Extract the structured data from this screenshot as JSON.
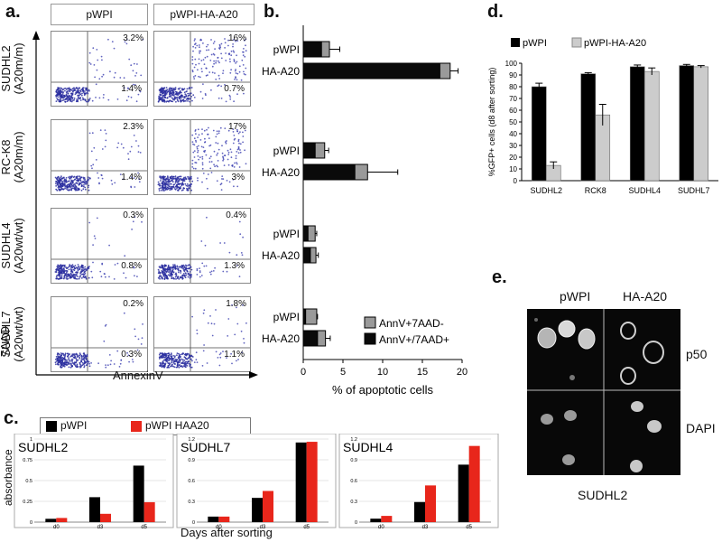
{
  "panel_a": {
    "label": "a.",
    "headers": [
      "pWPI",
      "pWPI-HA-A20"
    ],
    "y_axis_label": "7AAD",
    "x_axis_label": "AnnexinV",
    "rows": [
      {
        "line": "SUDHL2",
        "genotype": "(A20m/m)",
        "q": [
          [
            "3.2%",
            "1.4%"
          ],
          [
            "16%",
            "0.7%"
          ]
        ]
      },
      {
        "line": "RC-K8",
        "genotype": "(A20m/m)",
        "q": [
          [
            "2.3%",
            "1.4%"
          ],
          [
            "17%",
            "3%"
          ]
        ]
      },
      {
        "line": "SUDHL4",
        "genotype": "(A20wt/wt)",
        "q": [
          [
            "0.3%",
            "0.8%"
          ],
          [
            "0.4%",
            "1.3%"
          ]
        ]
      },
      {
        "line": "SUDHL7",
        "genotype": "(A20wt/wt)",
        "q": [
          [
            "0.2%",
            "0.3%"
          ],
          [
            "1.8%",
            "1.1%"
          ]
        ]
      }
    ]
  },
  "panel_b": {
    "label": "b.",
    "chart_data": {
      "type": "bar",
      "orientation": "horizontal",
      "stacked": true,
      "xlabel": "% of apoptotic cells",
      "xlim": [
        0,
        20
      ],
      "xticks": [
        "0",
        "5",
        "10",
        "15",
        "20"
      ],
      "groups": [
        {
          "bars": [
            {
              "label": "pWPI",
              "black": 2.3,
              "gray": 1.0,
              "err": 1.3
            },
            {
              "label": "HA-A20",
              "black": 17.2,
              "gray": 1.3,
              "err": 1.0
            }
          ]
        },
        {
          "bars": [
            {
              "label": "pWPI",
              "black": 1.5,
              "gray": 1.2,
              "err": 0.5
            },
            {
              "label": "HA-A20",
              "black": 6.5,
              "gray": 1.6,
              "err": 3.8
            }
          ]
        },
        {
          "bars": [
            {
              "label": "pWPI",
              "black": 0.6,
              "gray": 0.9,
              "err": 0.2
            },
            {
              "label": "HA-A20",
              "black": 0.9,
              "gray": 0.7,
              "err": 0.3
            }
          ]
        },
        {
          "bars": [
            {
              "label": "pWPI",
              "black": 0.3,
              "gray": 1.4,
              "err": 0.1
            },
            {
              "label": "HA-A20",
              "black": 1.8,
              "gray": 1.0,
              "err": 0.6
            }
          ]
        }
      ],
      "legend": [
        "AnnV+7AAD-",
        "AnnV+/7AAD+"
      ],
      "colors": {
        "black": "#0a0a0a",
        "gray": "#9a9a9a"
      }
    }
  },
  "panel_c": {
    "label": "c.",
    "legend": [
      "pWPI",
      "pWPI HAA20"
    ],
    "ylabel": "absorbance",
    "xlabel": "Days after sorting",
    "colors": {
      "pWPI": "#000000",
      "HAA20": "#e8261b"
    },
    "chart_data": [
      {
        "type": "bar",
        "title": "SUDHL2",
        "categories": [
          "d0",
          "d3",
          "d5"
        ],
        "ylim": [
          0,
          1
        ],
        "yticks": [
          "0",
          "0.25",
          "0.5",
          "0.75",
          "1"
        ],
        "series": [
          {
            "name": "pWPI",
            "values": [
              0.04,
              0.3,
              0.68
            ]
          },
          {
            "name": "pWPI HAA20",
            "values": [
              0.05,
              0.1,
              0.24
            ]
          }
        ]
      },
      {
        "type": "bar",
        "title": "SUDHL7",
        "categories": [
          "d0",
          "d3",
          "d5"
        ],
        "ylim": [
          0,
          1.2
        ],
        "yticks": [
          "0",
          "0.3",
          "0.6",
          "0.9",
          "1.2"
        ],
        "series": [
          {
            "name": "pWPI",
            "values": [
              0.08,
              0.35,
              1.15
            ]
          },
          {
            "name": "pWPI HAA20",
            "values": [
              0.08,
              0.45,
              1.16
            ]
          }
        ]
      },
      {
        "type": "bar",
        "title": "SUDHL4",
        "categories": [
          "d0",
          "d3",
          "d5"
        ],
        "ylim": [
          0,
          1.2
        ],
        "yticks": [
          "0",
          "0.3",
          "0.6",
          "0.9",
          "1.2"
        ],
        "series": [
          {
            "name": "pWPI",
            "values": [
              0.05,
              0.29,
              0.83
            ]
          },
          {
            "name": "pWPI HAA20",
            "values": [
              0.09,
              0.53,
              1.1
            ]
          }
        ]
      }
    ]
  },
  "panel_d": {
    "label": "d.",
    "chart_data": {
      "type": "bar",
      "legend": [
        "pWPI",
        "pWPI-HA-A20"
      ],
      "ylabel": "%GFP+ cells (d8 after sorting)",
      "ylim": [
        0,
        100
      ],
      "yticks": [
        "0",
        "10",
        "20",
        "30",
        "40",
        "50",
        "60",
        "70",
        "80",
        "90",
        "100"
      ],
      "categories": [
        "SUDHL2",
        "RCK8",
        "SUDHL4",
        "SUDHL7"
      ],
      "series": [
        {
          "name": "pWPI",
          "values": [
            80,
            91,
            97,
            98
          ],
          "err": [
            3,
            1,
            1.5,
            1
          ]
        },
        {
          "name": "pWPI-HA-A20",
          "values": [
            13,
            56,
            93,
            97
          ],
          "err": [
            3,
            9,
            3,
            1
          ]
        }
      ],
      "colors": {
        "pWPI": "#000000",
        "pWPI-HA-A20": "#cccccc"
      }
    }
  },
  "panel_e": {
    "label": "e.",
    "cols": [
      "pWPI",
      "HA-A20"
    ],
    "rows": [
      "p50",
      "DAPI"
    ],
    "caption": "SUDHL2"
  }
}
